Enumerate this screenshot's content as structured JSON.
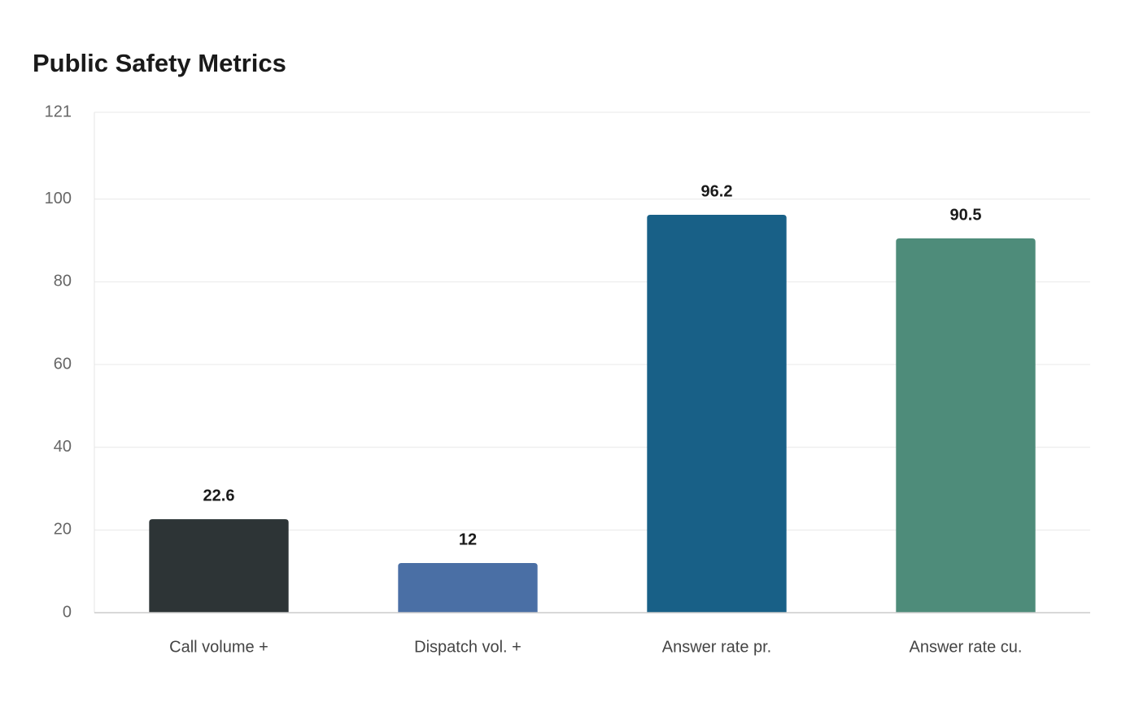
{
  "chart_data": {
    "type": "bar",
    "title": "Public Safety Metrics",
    "categories": [
      "Call volume +",
      "Dispatch vol. +",
      "Answer rate pr.",
      "Answer rate cu."
    ],
    "values": [
      22.6,
      12,
      96.2,
      90.5
    ],
    "colors": [
      "#2d3436",
      "#4a6fa5",
      "#186087",
      "#4e8c7a"
    ],
    "ylim": [
      0,
      121
    ],
    "yticks": [
      0,
      20,
      40,
      60,
      80,
      100,
      121
    ],
    "grid": true
  }
}
